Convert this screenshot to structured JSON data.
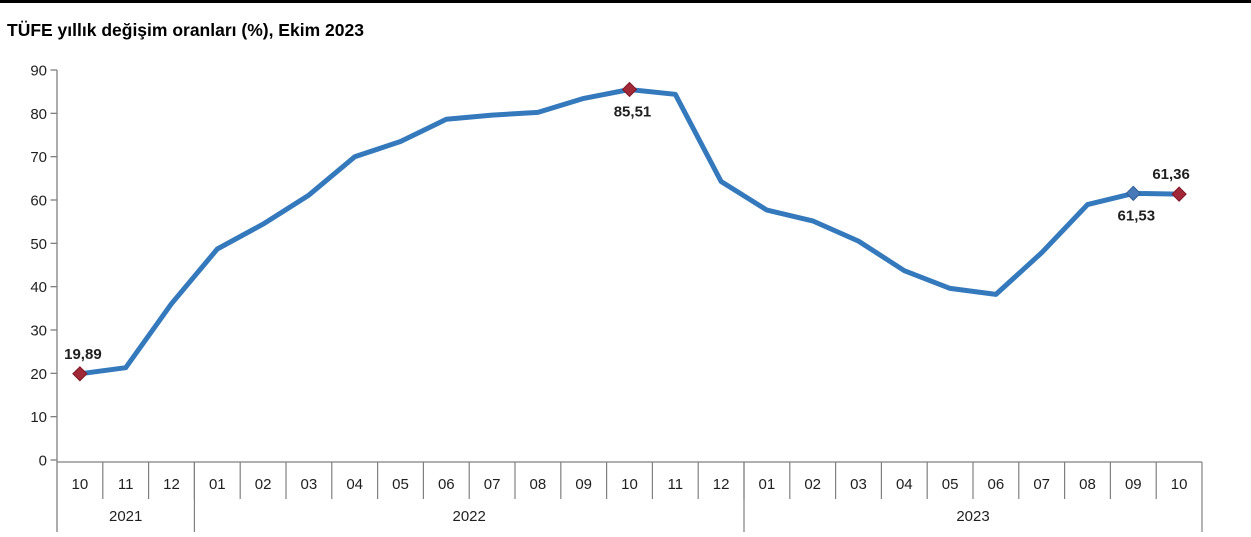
{
  "page": {
    "title": "TÜFE yıllık değişim oranları (%), Ekim 2023"
  },
  "chart_data": {
    "type": "line",
    "title": "TÜFE yıllık değişim oranları (%), Ekim 2023",
    "ylabel": "",
    "xlabel": "",
    "ylim": [
      0,
      90
    ],
    "ytick_step": 10,
    "ytick_labels": [
      "0",
      "10",
      "20",
      "30",
      "40",
      "50",
      "60",
      "70",
      "80",
      "90"
    ],
    "grid": false,
    "legend": "none",
    "colors": {
      "line": "#3579bd",
      "marker_red": "#a02837",
      "marker_red_stroke": "#7e1627",
      "marker_blue": "#4779b8",
      "marker_blue_stroke": "#2f5f96",
      "axis": "#808080",
      "text": "#1f1f1f",
      "title_text": "#000000",
      "top_border": "#000000",
      "background": "#ffffff"
    },
    "year_groups": [
      {
        "year": "2021",
        "months": [
          "10",
          "11",
          "12"
        ]
      },
      {
        "year": "2022",
        "months": [
          "01",
          "02",
          "03",
          "04",
          "05",
          "06",
          "07",
          "08",
          "09",
          "10",
          "11",
          "12"
        ]
      },
      {
        "year": "2023",
        "months": [
          "01",
          "02",
          "03",
          "04",
          "05",
          "06",
          "07",
          "08",
          "09",
          "10"
        ]
      }
    ],
    "values": [
      19.89,
      21.31,
      36.08,
      48.69,
      54.44,
      61.14,
      69.97,
      73.5,
      78.62,
      79.6,
      80.21,
      83.45,
      85.51,
      84.39,
      64.27,
      57.68,
      55.18,
      50.51,
      43.68,
      39.59,
      38.21,
      47.83,
      58.94,
      61.53,
      61.36
    ],
    "annotations": [
      {
        "index": 0,
        "label": "19,89",
        "marker": "red-diamond",
        "label_position": "above"
      },
      {
        "index": 12,
        "label": "85,51",
        "marker": "red-diamond",
        "label_position": "below"
      },
      {
        "index": 23,
        "label": "61,53",
        "marker": "blue-diamond",
        "label_position": "below"
      },
      {
        "index": 24,
        "label": "61,36",
        "marker": "red-diamond",
        "label_position": "above"
      }
    ]
  }
}
